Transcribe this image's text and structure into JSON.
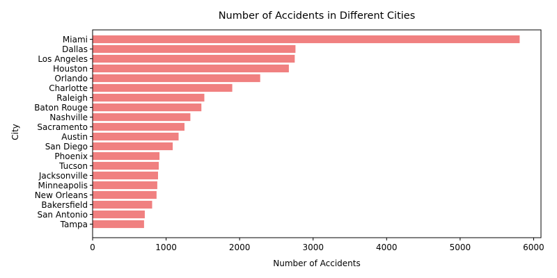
{
  "chart_data": {
    "type": "bar",
    "orientation": "horizontal",
    "title": "Number of Accidents in Different Cities",
    "xlabel": "Number of Accidents",
    "ylabel": "City",
    "categories": [
      "Miami",
      "Dallas",
      "Los Angeles",
      "Houston",
      "Orlando",
      "Charlotte",
      "Raleigh",
      "Baton Rouge",
      "Nashville",
      "Sacramento",
      "Austin",
      "San Diego",
      "Phoenix",
      "Tucson",
      "Jacksonville",
      "Minneapolis",
      "New Orleans",
      "Bakersfield",
      "San Antonio",
      "Tampa"
    ],
    "values": [
      5810,
      2760,
      2750,
      2670,
      2280,
      1900,
      1520,
      1480,
      1330,
      1250,
      1170,
      1090,
      910,
      900,
      890,
      880,
      870,
      810,
      710,
      700
    ],
    "xlim": [
      0,
      6100
    ],
    "xticks": [
      0,
      1000,
      2000,
      3000,
      4000,
      5000,
      6000
    ],
    "xtick_labels": [
      "0",
      "1000",
      "2000",
      "3000",
      "4000",
      "5000",
      "6000"
    ],
    "bar_color": "#f08080",
    "grid": false,
    "legend": "none"
  }
}
